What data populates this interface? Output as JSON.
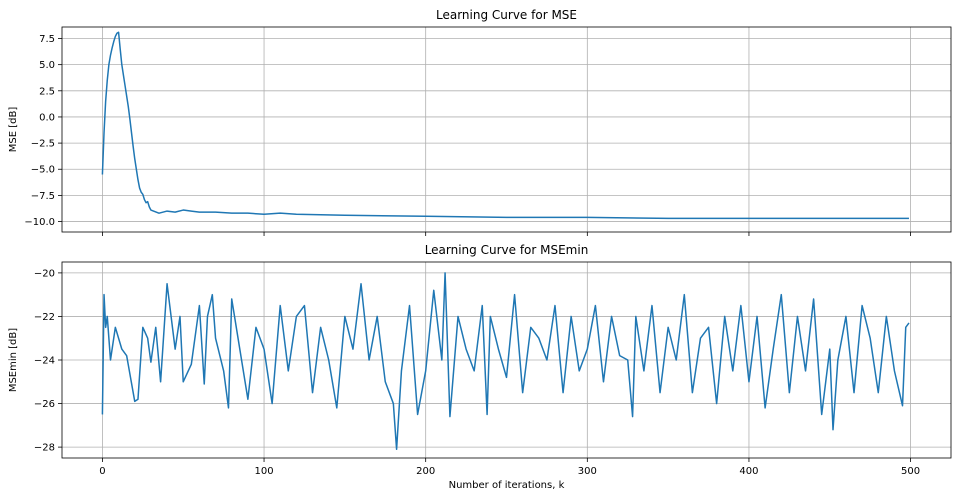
{
  "chart_data": [
    {
      "type": "line",
      "title": "Learning Curve for MSE",
      "xlabel": "",
      "ylabel": "MSE [dB]",
      "xlim": [
        -25,
        525
      ],
      "ylim": [
        -11.0,
        8.6
      ],
      "xticks": [
        0,
        100,
        200,
        300,
        400,
        500
      ],
      "xtick_labels": [
        "",
        "",
        "",
        "",
        "",
        ""
      ],
      "yticks": [
        -10.0,
        -7.5,
        -5.0,
        -2.5,
        0.0,
        2.5,
        5.0,
        7.5
      ],
      "ytick_labels": [
        "−10.0",
        "−7.5",
        "−5.0",
        "−2.5",
        "0.0",
        "2.5",
        "5.0",
        "7.5"
      ],
      "grid": true,
      "color": "#1f77b4",
      "series": [
        {
          "x": [
            0,
            1,
            2,
            3,
            4,
            5,
            6,
            7,
            8,
            9,
            10,
            11,
            12,
            13,
            14,
            15,
            16,
            17,
            18,
            19,
            20,
            21,
            22,
            23,
            24,
            25,
            26,
            27,
            28,
            29,
            30,
            35,
            40,
            45,
            50,
            55,
            60,
            70,
            80,
            90,
            100,
            110,
            120,
            150,
            200,
            250,
            300,
            350,
            400,
            450,
            499
          ],
          "values": [
            -5.5,
            -1.5,
            1.5,
            3.5,
            5.0,
            5.9,
            6.6,
            7.2,
            7.7,
            8.0,
            8.1,
            6.5,
            5.0,
            4.0,
            3.0,
            2.0,
            1.0,
            -0.2,
            -1.5,
            -2.8,
            -4.0,
            -5.0,
            -6.0,
            -6.8,
            -7.2,
            -7.4,
            -7.9,
            -8.2,
            -8.1,
            -8.6,
            -8.9,
            -9.2,
            -9.0,
            -9.1,
            -8.9,
            -9.0,
            -9.1,
            -9.1,
            -9.2,
            -9.2,
            -9.3,
            -9.2,
            -9.3,
            -9.4,
            -9.5,
            -9.6,
            -9.6,
            -9.7,
            -9.7,
            -9.7,
            -9.7
          ]
        }
      ]
    },
    {
      "type": "line",
      "title": "Learning Curve for MSEmin",
      "xlabel": "Number of iterations, k",
      "ylabel": "MSEmin [dB]",
      "xlim": [
        -25,
        525
      ],
      "ylim": [
        -28.5,
        -19.5
      ],
      "xticks": [
        0,
        100,
        200,
        300,
        400,
        500
      ],
      "xtick_labels": [
        "0",
        "100",
        "200",
        "300",
        "400",
        "500"
      ],
      "yticks": [
        -28,
        -26,
        -24,
        -22,
        -20
      ],
      "ytick_labels": [
        "−28",
        "−26",
        "−24",
        "−22",
        "−20"
      ],
      "grid": true,
      "color": "#1f77b4",
      "series": [
        {
          "x": [
            0,
            1,
            2,
            3,
            5,
            8,
            12,
            15,
            20,
            22,
            25,
            28,
            30,
            33,
            36,
            40,
            45,
            48,
            50,
            55,
            60,
            63,
            65,
            68,
            70,
            75,
            78,
            80,
            85,
            90,
            95,
            100,
            105,
            110,
            115,
            120,
            125,
            130,
            135,
            140,
            145,
            150,
            155,
            160,
            165,
            170,
            175,
            180,
            182,
            185,
            190,
            195,
            200,
            205,
            210,
            212,
            215,
            220,
            225,
            230,
            235,
            238,
            240,
            245,
            250,
            255,
            260,
            265,
            270,
            275,
            280,
            285,
            290,
            295,
            300,
            305,
            310,
            315,
            320,
            325,
            328,
            330,
            335,
            340,
            345,
            350,
            355,
            360,
            365,
            370,
            375,
            380,
            385,
            390,
            395,
            400,
            405,
            410,
            415,
            420,
            425,
            430,
            435,
            440,
            445,
            450,
            452,
            455,
            460,
            465,
            470,
            475,
            480,
            485,
            490,
            495,
            497,
            499
          ],
          "values": [
            -26.5,
            -21.0,
            -22.5,
            -22.0,
            -24.0,
            -22.5,
            -23.5,
            -23.8,
            -25.9,
            -25.8,
            -22.5,
            -23.0,
            -24.1,
            -22.5,
            -25.0,
            -20.5,
            -23.5,
            -22.0,
            -25.0,
            -24.2,
            -21.5,
            -25.1,
            -22.0,
            -21.0,
            -23.0,
            -24.5,
            -26.2,
            -21.2,
            -23.5,
            -25.8,
            -22.5,
            -23.5,
            -26.0,
            -21.5,
            -24.5,
            -22.0,
            -21.5,
            -25.5,
            -22.5,
            -24.0,
            -26.2,
            -22.0,
            -23.5,
            -20.5,
            -24.0,
            -22.0,
            -25.0,
            -26.0,
            -28.1,
            -24.5,
            -21.5,
            -26.5,
            -24.5,
            -20.8,
            -24.0,
            -20.0,
            -26.6,
            -22.0,
            -23.5,
            -24.5,
            -21.5,
            -26.5,
            -22.0,
            -23.5,
            -24.8,
            -21.0,
            -25.5,
            -22.5,
            -23.0,
            -24.0,
            -21.5,
            -25.5,
            -22.0,
            -24.5,
            -23.5,
            -21.5,
            -25.0,
            -22.0,
            -23.8,
            -24.0,
            -26.6,
            -22.0,
            -24.5,
            -21.5,
            -25.5,
            -22.5,
            -24.0,
            -21.0,
            -25.5,
            -23.0,
            -22.5,
            -26.0,
            -22.0,
            -24.5,
            -21.5,
            -25.0,
            -22.0,
            -26.2,
            -23.5,
            -21.0,
            -25.5,
            -22.0,
            -24.5,
            -21.2,
            -26.5,
            -23.5,
            -27.2,
            -24.0,
            -22.0,
            -25.5,
            -21.5,
            -23.0,
            -25.5,
            -22.0,
            -24.5,
            -26.1,
            -22.5,
            -22.3
          ]
        }
      ]
    }
  ]
}
